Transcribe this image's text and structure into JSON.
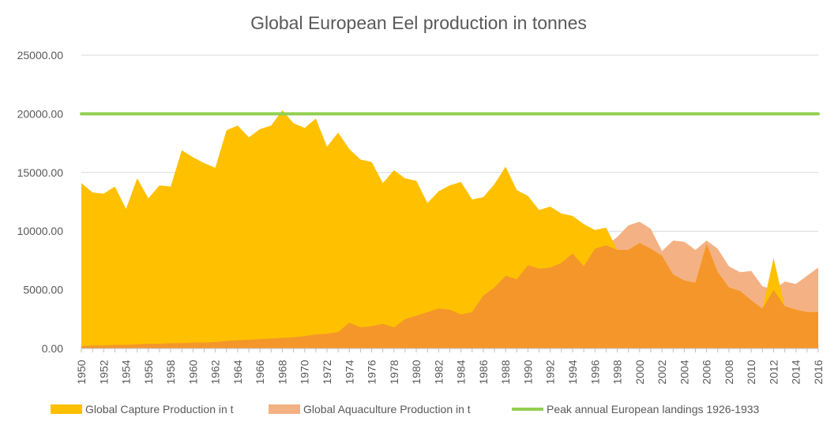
{
  "chart_data": {
    "type": "area",
    "title": "Global European Eel production in tonnes",
    "xlabel": "",
    "ylabel": "",
    "ylim": [
      0,
      25000
    ],
    "y_ticks": [
      "0.00",
      "5000.00",
      "10000.00",
      "15000.00",
      "20000.00",
      "25000.00"
    ],
    "x_tick_labels": [
      "1950",
      "1952",
      "1954",
      "1956",
      "1958",
      "1960",
      "1962",
      "1964",
      "1966",
      "1968",
      "1970",
      "1972",
      "1974",
      "1976",
      "1978",
      "1980",
      "1982",
      "1984",
      "1986",
      "1988",
      "1990",
      "1992",
      "1994",
      "1996",
      "1998",
      "2000",
      "2002",
      "2004",
      "2006",
      "2008",
      "2010",
      "2012",
      "2014",
      "2016"
    ],
    "x": [
      1950,
      1951,
      1952,
      1953,
      1954,
      1955,
      1956,
      1957,
      1958,
      1959,
      1960,
      1961,
      1962,
      1963,
      1964,
      1965,
      1966,
      1967,
      1968,
      1969,
      1970,
      1971,
      1972,
      1973,
      1974,
      1975,
      1976,
      1977,
      1978,
      1979,
      1980,
      1981,
      1982,
      1983,
      1984,
      1985,
      1986,
      1987,
      1988,
      1989,
      1990,
      1991,
      1992,
      1993,
      1994,
      1995,
      1996,
      1997,
      1998,
      1999,
      2000,
      2001,
      2002,
      2003,
      2004,
      2005,
      2006,
      2007,
      2008,
      2009,
      2010,
      2011,
      2012,
      2013,
      2014,
      2015,
      2016
    ],
    "grid": true,
    "legend_position": "bottom",
    "series": [
      {
        "name": "Global Capture Production in t",
        "type": "area",
        "color": "#FFC000",
        "values": [
          14100,
          13300,
          13200,
          13800,
          11900,
          14500,
          12800,
          13900,
          13800,
          16900,
          16300,
          15800,
          15400,
          18600,
          19000,
          18000,
          18700,
          19000,
          20300,
          19200,
          18800,
          19600,
          17200,
          18400,
          17000,
          16100,
          15900,
          14100,
          15200,
          14500,
          14300,
          12400,
          13400,
          13900,
          14200,
          12700,
          12900,
          14000,
          15500,
          13500,
          13000,
          11800,
          12100,
          11500,
          11300,
          10600,
          10100,
          10300,
          8400,
          8400,
          9000,
          8500,
          7900,
          6300,
          5800,
          5600,
          8900,
          6500,
          5200,
          4900,
          4100,
          3400,
          7700,
          3600,
          3300,
          3100,
          3100
        ]
      },
      {
        "name": "Global Aquaculture Production in t",
        "type": "area",
        "color": "#F4B183",
        "values": [
          200,
          250,
          250,
          300,
          300,
          350,
          400,
          400,
          450,
          450,
          500,
          500,
          550,
          650,
          700,
          750,
          800,
          850,
          900,
          950,
          1050,
          1200,
          1250,
          1400,
          2200,
          1800,
          1900,
          2100,
          1800,
          2500,
          2800,
          3100,
          3400,
          3300,
          2900,
          3100,
          4500,
          5200,
          6200,
          5900,
          7100,
          6800,
          6900,
          7300,
          8100,
          7000,
          8500,
          8800,
          9500,
          10500,
          10800,
          10200,
          8300,
          9200,
          9100,
          8400,
          9200,
          8500,
          7000,
          6500,
          6600,
          5300,
          5000,
          5700,
          5500,
          6200,
          6900
        ]
      },
      {
        "name": "Peak annual European landings 1926-1933",
        "type": "line",
        "color": "#92D050",
        "values": [
          20000,
          20000,
          20000,
          20000,
          20000,
          20000,
          20000,
          20000,
          20000,
          20000,
          20000,
          20000,
          20000,
          20000,
          20000,
          20000,
          20000,
          20000,
          20000,
          20000,
          20000,
          20000,
          20000,
          20000,
          20000,
          20000,
          20000,
          20000,
          20000,
          20000,
          20000,
          20000,
          20000,
          20000,
          20000,
          20000,
          20000,
          20000,
          20000,
          20000,
          20000,
          20000,
          20000,
          20000,
          20000,
          20000,
          20000,
          20000,
          20000,
          20000,
          20000,
          20000,
          20000,
          20000,
          20000,
          20000,
          20000,
          20000,
          20000,
          20000,
          20000,
          20000,
          20000,
          20000,
          20000,
          20000,
          20000
        ]
      }
    ],
    "overlap_color": "#F4962A"
  }
}
